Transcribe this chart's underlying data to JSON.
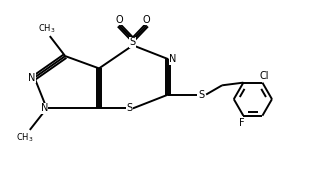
{
  "bg_color": "#ffffff",
  "line_color": "#000000",
  "figsize": [
    3.15,
    1.86
  ],
  "dpi": 100,
  "xlim": [
    0,
    10
  ],
  "ylim": [
    0,
    6
  ],
  "lw": 1.4
}
